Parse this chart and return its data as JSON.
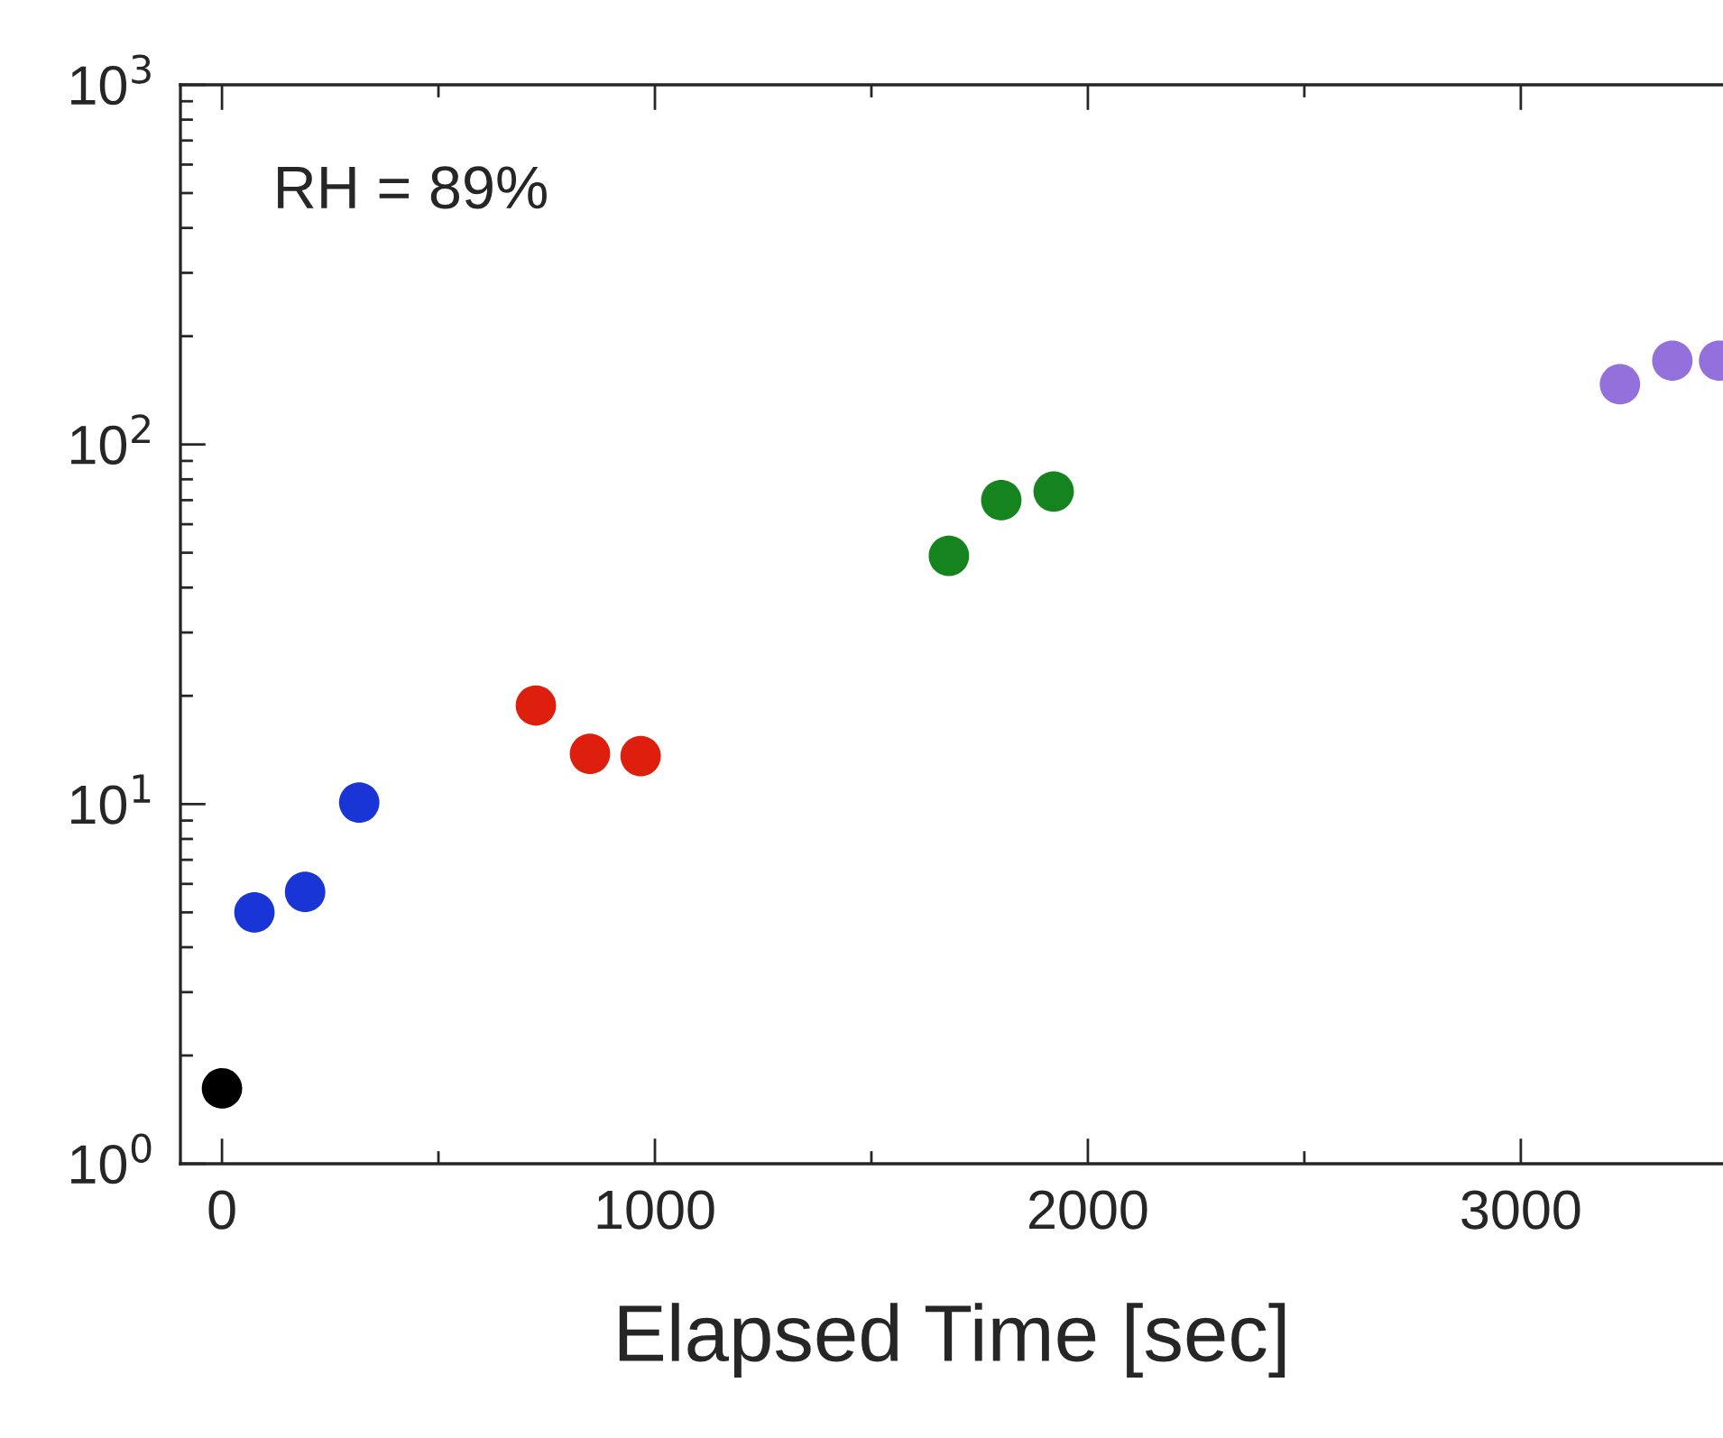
{
  "chart_data": {
    "type": "scatter",
    "xlabel": "Elapsed Time [sec]",
    "annotations": [
      "RH = 89%"
    ],
    "series": [
      {
        "color": "#000000",
        "x": [
          0
        ],
        "values": [
          1.62
        ]
      },
      {
        "color": "#1a35d6",
        "x": [
          75,
          192,
          317
        ],
        "values": [
          5.0,
          5.7,
          10.1
        ]
      },
      {
        "color": "#de1f0d",
        "x": [
          725,
          850,
          967
        ],
        "values": [
          18.8,
          13.8,
          13.6
        ]
      },
      {
        "color": "#15841f",
        "x": [
          1679,
          1800,
          1921
        ],
        "values": [
          49,
          70,
          74
        ]
      },
      {
        "color": "#9370db",
        "x": [
          3229,
          3350,
          3458
        ],
        "values": [
          147,
          171,
          171
        ]
      }
    ],
    "log": "y",
    "marker": "circle",
    "grid": false,
    "legend": false,
    "xlim": [
      -96,
      3467
    ],
    "xticks": [
      0,
      1000,
      2000,
      3000
    ],
    "ylim": [
      1,
      1000
    ],
    "yticks": [
      {
        "value": 1,
        "label": "10$^{0}$"
      },
      {
        "value": 10,
        "label": "10$^{1}$"
      },
      {
        "value": 100,
        "label": "10$^{2}$"
      },
      {
        "value": 1000,
        "label": "10$^{3}$"
      }
    ]
  }
}
